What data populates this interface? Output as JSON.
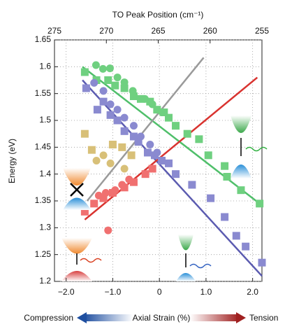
{
  "chart_data": {
    "type": "scatter",
    "x_label": "Axial Strain (%)",
    "y_label": "Energy (eV)",
    "x2_label": "TO Peak Position (cm⁻¹)",
    "annotations": [
      "Compression",
      "Tension"
    ],
    "xlim": [
      -2.25,
      2.2
    ],
    "xticks": [
      {
        "value": -2,
        "label": "−2.0"
      },
      {
        "value": -1,
        "label": "−1.0"
      },
      0,
      {
        "value": 1,
        "label": "1.0"
      },
      {
        "value": 2,
        "label": "2.0"
      }
    ],
    "x2lim": [
      275,
      255
    ],
    "x2ticks": [
      275,
      270,
      265,
      260,
      255
    ],
    "ylim": [
      1.2,
      1.65
    ],
    "yticks": [
      1.2,
      1.25,
      1.3,
      1.35,
      1.4,
      1.45,
      1.5,
      1.55,
      1.6,
      1.65
    ],
    "grid": true,
    "series": [
      {
        "color": "#4fbf6a",
        "style": "line",
        "x": [
          -1.65,
          2.15
        ],
        "values": [
          1.6,
          1.345
        ]
      },
      {
        "color": "#5b5bb0",
        "style": "line",
        "x": [
          -1.65,
          2.2
        ],
        "values": [
          1.575,
          1.21
        ]
      },
      {
        "color": "#d9332f",
        "style": "line",
        "x": [
          -1.6,
          2.1
        ],
        "values": [
          1.315,
          1.58
        ]
      },
      {
        "color": "#9a9a9a",
        "style": "line",
        "x": [
          -1.55,
          0.95
        ],
        "values": [
          1.35,
          1.617
        ]
      },
      {
        "color": "#6fd080",
        "marker": "square",
        "x": [
          -1.6,
          -1.35,
          -1.1,
          -0.95,
          -0.75,
          -0.55,
          -0.4,
          -0.2,
          -0.05,
          0.1,
          0.2,
          0.35,
          0.6,
          0.85,
          1.05,
          1.4,
          1.45,
          1.75,
          2.15
        ],
        "values": [
          1.59,
          1.575,
          1.575,
          1.565,
          1.56,
          1.545,
          1.54,
          1.535,
          1.52,
          1.515,
          1.505,
          1.49,
          1.475,
          1.465,
          1.435,
          1.415,
          1.395,
          1.37,
          1.345
        ]
      },
      {
        "color": "#6fd080",
        "marker": "circle",
        "x": [
          -1.36,
          -1.21,
          -1.06,
          -0.9,
          -0.75,
          -0.57,
          -0.31,
          -0.15,
          0.06
        ],
        "values": [
          1.603,
          1.596,
          1.597,
          1.58,
          1.571,
          1.555,
          1.54,
          1.53,
          1.515
        ]
      },
      {
        "color": "#8a8ad0",
        "marker": "square",
        "x": [
          -1.57,
          -1.33,
          -1.2,
          -1.05,
          -0.9,
          -0.75,
          -0.55,
          -0.45,
          -0.25,
          -0.1,
          0.05,
          0.2,
          0.35,
          0.7,
          1.1,
          1.4,
          1.65,
          1.85,
          2.2
        ],
        "values": [
          1.56,
          1.52,
          1.535,
          1.51,
          1.5,
          1.48,
          1.47,
          1.46,
          1.44,
          1.435,
          1.425,
          1.42,
          1.4,
          1.38,
          1.355,
          1.32,
          1.285,
          1.265,
          1.235
        ]
      },
      {
        "color": "#8a8ad0",
        "marker": "circle",
        "x": [
          -1.4,
          -1.2,
          -1.05,
          -0.9,
          -0.75,
          -0.55,
          -0.4,
          -0.2,
          -0.05
        ],
        "values": [
          1.57,
          1.555,
          1.53,
          1.52,
          1.505,
          1.49,
          1.47,
          1.455,
          1.44
        ]
      },
      {
        "color": "#f07070",
        "marker": "square",
        "x": [
          -1.6,
          -1.4,
          -1.2,
          -1.0,
          -0.75,
          -0.55,
          -0.3,
          -0.15
        ],
        "values": [
          1.33,
          1.345,
          1.355,
          1.365,
          1.375,
          1.385,
          1.4,
          1.41
        ]
      },
      {
        "color": "#f07070",
        "marker": "circle",
        "x": [
          -1.3,
          -1.15,
          -0.95,
          -0.8,
          -0.65,
          -1.1
        ],
        "values": [
          1.36,
          1.365,
          1.37,
          1.38,
          1.39,
          1.295
        ]
      },
      {
        "color": "#d8c078",
        "marker": "square",
        "x": [
          -1.6,
          -1.45,
          -1.0,
          -0.8,
          -0.6
        ],
        "values": [
          1.475,
          1.445,
          1.455,
          1.45,
          1.435
        ]
      },
      {
        "color": "#d8c078",
        "marker": "circle",
        "x": [
          -1.35,
          -1.2,
          -1.05,
          -0.75
        ],
        "values": [
          1.425,
          1.435,
          1.42,
          1.41
        ]
      }
    ]
  }
}
